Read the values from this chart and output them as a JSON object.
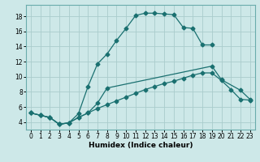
{
  "xlabel": "Humidex (Indice chaleur)",
  "bg_color": "#cde8e8",
  "grid_color": "#aacccc",
  "line_color": "#1a7070",
  "xlim": [
    -0.5,
    23.5
  ],
  "ylim": [
    3.0,
    19.5
  ],
  "yticks": [
    4,
    6,
    8,
    10,
    12,
    14,
    16,
    18
  ],
  "xticks": [
    0,
    1,
    2,
    3,
    4,
    5,
    6,
    7,
    8,
    9,
    10,
    11,
    12,
    13,
    14,
    15,
    16,
    17,
    18,
    19,
    20,
    21,
    22,
    23
  ],
  "line1_x": [
    0,
    1,
    2,
    3,
    4,
    5,
    6,
    7,
    8,
    9,
    10,
    11,
    12,
    13,
    14,
    15,
    16,
    17,
    18,
    19,
    20,
    21,
    22,
    23
  ],
  "line1_y": [
    5.2,
    4.9,
    4.6,
    3.7,
    3.9,
    4.6,
    5.2,
    5.8,
    6.3,
    6.8,
    7.3,
    7.8,
    8.3,
    8.7,
    9.1,
    9.4,
    9.8,
    10.2,
    10.5,
    10.5,
    9.5,
    8.3,
    7.0,
    6.9
  ],
  "line2_x": [
    0,
    1,
    2,
    3,
    4,
    5,
    6,
    7,
    8,
    9,
    10,
    11,
    12,
    13,
    14,
    15,
    16,
    17,
    18,
    19
  ],
  "line2_y": [
    5.2,
    4.9,
    4.6,
    3.7,
    3.9,
    5.1,
    8.7,
    11.7,
    13.0,
    14.8,
    16.4,
    18.1,
    18.4,
    18.4,
    18.3,
    18.2,
    16.5,
    16.4,
    14.2,
    14.2
  ],
  "line3_x": [
    0,
    1,
    2,
    3,
    4,
    5,
    6,
    7,
    8,
    19,
    20,
    22,
    23
  ],
  "line3_y": [
    5.2,
    4.9,
    4.6,
    3.7,
    3.9,
    4.6,
    5.2,
    6.5,
    8.5,
    11.4,
    9.6,
    8.2,
    7.0
  ]
}
